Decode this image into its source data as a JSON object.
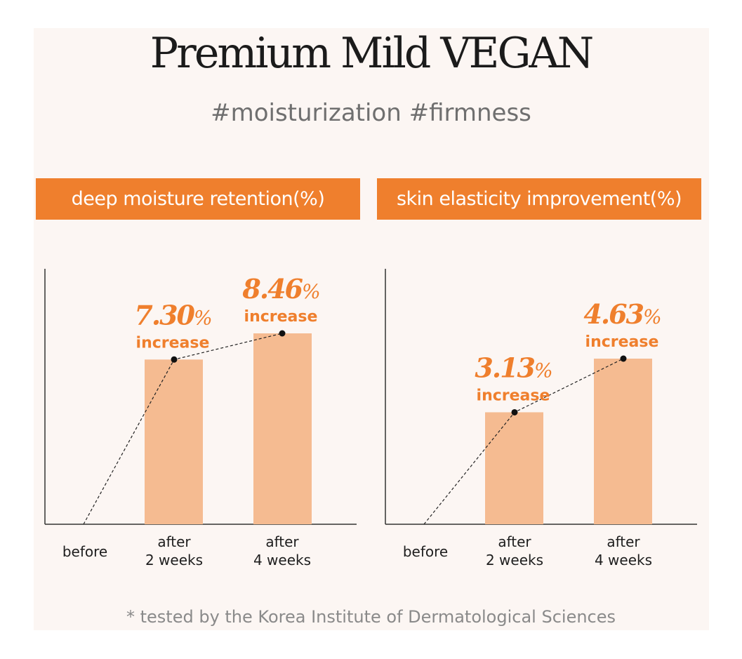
{
  "header": {
    "title": "Premium Mild VEGAN",
    "subtitle": "#moisturization #firmness"
  },
  "footnote": "* tested by the Korea Institute of Dermatological Sciences",
  "colors": {
    "accent": "#ef7f2d",
    "bar": "#f5bb91",
    "background": "#fcf6f3",
    "axis": "#333333"
  },
  "chart_data": [
    {
      "type": "bar",
      "title": "deep moisture retention(%)",
      "categories": [
        {
          "line1": "before",
          "line2": ""
        },
        {
          "line1": "after",
          "line2": "2 weeks"
        },
        {
          "line1": "after",
          "line2": "4 weeks"
        }
      ],
      "values": [
        0,
        7.3,
        8.46
      ],
      "data_labels": [
        null,
        {
          "value": "7.30",
          "unit": "%",
          "caption": "increase"
        },
        {
          "value": "8.46",
          "unit": "%",
          "caption": "increase"
        }
      ],
      "trend_line": true
    },
    {
      "type": "bar",
      "title": "skin elasticity improvement(%)",
      "categories": [
        {
          "line1": "before",
          "line2": ""
        },
        {
          "line1": "after",
          "line2": "2 weeks"
        },
        {
          "line1": "after",
          "line2": "4 weeks"
        }
      ],
      "values": [
        0,
        3.13,
        4.63
      ],
      "data_labels": [
        null,
        {
          "value": "3.13",
          "unit": "%",
          "caption": "increase"
        },
        {
          "value": "4.63",
          "unit": "%",
          "caption": "increase"
        }
      ],
      "trend_line": true
    }
  ]
}
